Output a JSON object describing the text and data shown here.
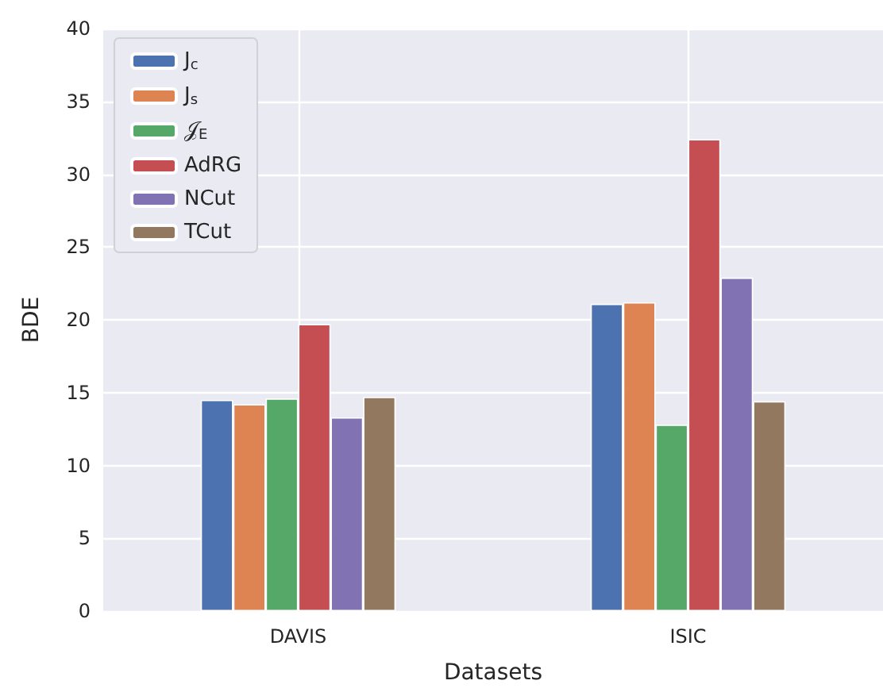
{
  "chart_data": {
    "type": "bar",
    "xlabel": "Datasets",
    "ylabel": "BDE",
    "categories": [
      "DAVIS",
      "ISIC"
    ],
    "series": [
      {
        "name": "J$_{c}$",
        "color": "#4c72b0",
        "values": [
          14.5,
          21.1
        ]
      },
      {
        "name": "J$_{s}$",
        "color": "#dd8452",
        "values": [
          14.2,
          21.2
        ]
      },
      {
        "name": "𝒥$_{E}$",
        "color": "#55a868",
        "values": [
          14.6,
          12.8
        ]
      },
      {
        "name": "AdRG",
        "color": "#c44e52",
        "values": [
          19.7,
          32.4
        ]
      },
      {
        "name": "NCut",
        "color": "#8172b3",
        "values": [
          13.3,
          22.9
        ]
      },
      {
        "name": "TCut",
        "color": "#937860",
        "values": [
          14.7,
          14.4
        ]
      }
    ],
    "ylim": [
      0,
      40
    ],
    "yticks": [
      0,
      5,
      10,
      15,
      20,
      25,
      30,
      35,
      40
    ],
    "grid": true,
    "legend": "top left"
  }
}
